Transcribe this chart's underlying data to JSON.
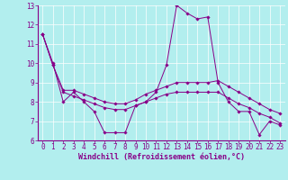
{
  "line1_x": [
    0,
    1,
    2,
    3,
    4,
    5,
    6,
    7,
    8,
    9,
    10,
    11,
    12,
    13,
    14,
    15,
    16,
    17,
    18,
    19,
    20,
    21,
    22,
    23
  ],
  "line1_y": [
    11.5,
    10.0,
    8.0,
    8.5,
    8.0,
    7.5,
    6.4,
    6.4,
    6.4,
    7.8,
    8.0,
    8.5,
    9.9,
    13.0,
    12.6,
    12.3,
    12.4,
    9.0,
    8.0,
    7.5,
    7.5,
    6.3,
    7.0,
    6.8
  ],
  "line2_x": [
    0,
    1,
    2,
    3,
    4,
    5,
    6,
    7,
    8,
    9,
    10,
    11,
    12,
    13,
    14,
    15,
    16,
    17,
    18,
    19,
    20,
    21,
    22,
    23
  ],
  "line2_y": [
    11.5,
    9.9,
    8.6,
    8.6,
    8.4,
    8.2,
    8.0,
    7.9,
    7.9,
    8.1,
    8.4,
    8.6,
    8.8,
    9.0,
    9.0,
    9.0,
    9.0,
    9.1,
    8.8,
    8.5,
    8.2,
    7.9,
    7.6,
    7.4
  ],
  "line3_x": [
    0,
    1,
    2,
    3,
    4,
    5,
    6,
    7,
    8,
    9,
    10,
    11,
    12,
    13,
    14,
    15,
    16,
    17,
    18,
    19,
    20,
    21,
    22,
    23
  ],
  "line3_y": [
    11.5,
    9.9,
    8.5,
    8.3,
    8.1,
    7.9,
    7.7,
    7.6,
    7.6,
    7.8,
    8.0,
    8.2,
    8.4,
    8.5,
    8.5,
    8.5,
    8.5,
    8.5,
    8.2,
    7.9,
    7.7,
    7.4,
    7.2,
    6.9
  ],
  "line_color": "#880088",
  "bg_color": "#b2eeee",
  "grid_color": "#ffffff",
  "xlabel": "Windchill (Refroidissement éolien,°C)",
  "ylim": [
    6,
    13
  ],
  "xlim": [
    -0.5,
    23.5
  ],
  "yticks": [
    6,
    7,
    8,
    9,
    10,
    11,
    12,
    13
  ],
  "xticks": [
    0,
    1,
    2,
    3,
    4,
    5,
    6,
    7,
    8,
    9,
    10,
    11,
    12,
    13,
    14,
    15,
    16,
    17,
    18,
    19,
    20,
    21,
    22,
    23
  ],
  "tick_fontsize": 5.5,
  "xlabel_fontsize": 6.0,
  "marker_size": 1.8,
  "linewidth": 0.7
}
